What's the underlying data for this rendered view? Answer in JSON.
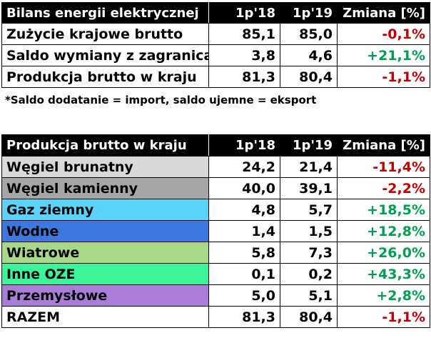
{
  "balance": {
    "headers": [
      "Bilans energii elektrycznej",
      "1p'18",
      "1p'19",
      "Zmiana [%]"
    ],
    "rows": [
      {
        "label": "Zużycie krajowe brutto",
        "v18": "85,1",
        "v19": "85,0",
        "change": "-0,1%",
        "trend": "neg"
      },
      {
        "label": "Saldo wymiany z zagranicą*",
        "v18": "3,8",
        "v19": "4,6",
        "change": "+21,1%",
        "trend": "pos"
      },
      {
        "label": "Produkcja brutto w kraju",
        "v18": "81,3",
        "v19": "80,4",
        "change": "-1,1%",
        "trend": "neg"
      }
    ]
  },
  "footnote": "*Saldo dodatanie = import, saldo ujemne = eksport",
  "production": {
    "headers": [
      "Produkcja brutto w kraju",
      "1p'18",
      "1p'19",
      "Zmiana [%]"
    ],
    "rows": [
      {
        "label": "Węgiel brunatny",
        "v18": "24,2",
        "v19": "21,4",
        "change": "-11,4%",
        "trend": "neg",
        "color": "#d9d9d9"
      },
      {
        "label": "Węgiel kamienny",
        "v18": "40,0",
        "v19": "39,1",
        "change": "-2,2%",
        "trend": "neg",
        "color": "#a6a6a6"
      },
      {
        "label": "Gaz ziemny",
        "v18": "4,8",
        "v19": "5,7",
        "change": "+18,5%",
        "trend": "pos",
        "color": "#5bd2f7"
      },
      {
        "label": "Wodne",
        "v18": "1,4",
        "v19": "1,5",
        "change": "+12,8%",
        "trend": "pos",
        "color": "#3c78e0"
      },
      {
        "label": "Wiatrowe",
        "v18": "5,8",
        "v19": "7,3",
        "change": "+26,0%",
        "trend": "pos",
        "color": "#a8d88a"
      },
      {
        "label": "Inne OZE",
        "v18": "0,1",
        "v19": "0,2",
        "change": "+43,3%",
        "trend": "pos",
        "color": "#3cf59a"
      },
      {
        "label": "Przemysłowe",
        "v18": "5,0",
        "v19": "5,1",
        "change": "+2,8%",
        "trend": "pos",
        "color": "#a97dd8"
      },
      {
        "label": "RAZEM",
        "v18": "81,3",
        "v19": "80,4",
        "change": "-1,1%",
        "trend": "neg",
        "color": "#ffffff"
      }
    ]
  }
}
